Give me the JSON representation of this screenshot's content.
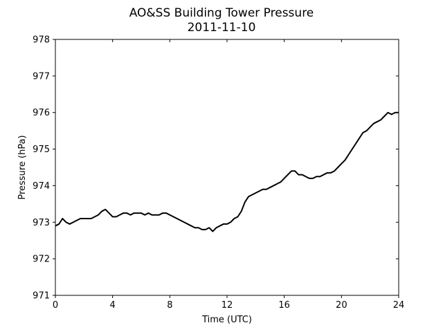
{
  "chart_data": {
    "type": "line",
    "title": "AO&SS Building Tower Pressure",
    "subtitle": "2011-11-10",
    "xlabel": "Time (UTC)",
    "ylabel": "Pressure (hPa)",
    "xlim": [
      0,
      24
    ],
    "ylim": [
      971,
      978
    ],
    "xticks": [
      0,
      4,
      8,
      12,
      16,
      20,
      24
    ],
    "yticks": [
      971,
      972,
      973,
      974,
      975,
      976,
      977,
      978
    ],
    "grid": false,
    "line_color": "#000000",
    "series": [
      {
        "x": [
          0.0,
          0.25,
          0.5,
          0.75,
          1.0,
          1.25,
          1.5,
          1.75,
          2.0,
          2.25,
          2.5,
          2.75,
          3.0,
          3.25,
          3.5,
          3.75,
          4.0,
          4.25,
          4.5,
          4.75,
          5.0,
          5.25,
          5.5,
          5.75,
          6.0,
          6.25,
          6.5,
          6.75,
          7.0,
          7.25,
          7.5,
          7.75,
          8.0,
          8.25,
          8.5,
          8.75,
          9.0,
          9.25,
          9.5,
          9.75,
          10.0,
          10.25,
          10.5,
          10.75,
          11.0,
          11.25,
          11.5,
          11.75,
          12.0,
          12.25,
          12.5,
          12.75,
          13.0,
          13.25,
          13.5,
          13.75,
          14.0,
          14.25,
          14.5,
          14.75,
          15.0,
          15.25,
          15.5,
          15.75,
          16.0,
          16.25,
          16.5,
          16.75,
          17.0,
          17.25,
          17.5,
          17.75,
          18.0,
          18.25,
          18.5,
          18.75,
          19.0,
          19.25,
          19.5,
          19.75,
          20.0,
          20.25,
          20.5,
          20.75,
          21.0,
          21.25,
          21.5,
          21.75,
          22.0,
          22.25,
          22.5,
          22.75,
          23.0,
          23.25,
          23.5,
          23.75,
          24.0
        ],
        "y": [
          972.9,
          972.95,
          973.1,
          973.0,
          972.95,
          973.0,
          973.05,
          973.1,
          973.1,
          973.1,
          973.1,
          973.15,
          973.2,
          973.3,
          973.35,
          973.25,
          973.15,
          973.15,
          973.2,
          973.25,
          973.25,
          973.2,
          973.25,
          973.25,
          973.25,
          973.2,
          973.25,
          973.2,
          973.2,
          973.2,
          973.25,
          973.25,
          973.2,
          973.15,
          973.1,
          973.05,
          973.0,
          972.95,
          972.9,
          972.85,
          972.85,
          972.8,
          972.8,
          972.85,
          972.75,
          972.85,
          972.9,
          972.95,
          972.95,
          973.0,
          973.1,
          973.15,
          973.3,
          973.55,
          973.7,
          973.75,
          973.8,
          973.85,
          973.9,
          973.9,
          973.95,
          974.0,
          974.05,
          974.1,
          974.2,
          974.3,
          974.4,
          974.4,
          974.3,
          974.3,
          974.25,
          974.2,
          974.2,
          974.25,
          974.25,
          974.3,
          974.35,
          974.35,
          974.4,
          974.5,
          974.6,
          974.7,
          974.85,
          975.0,
          975.15,
          975.3,
          975.45,
          975.5,
          975.6,
          975.7,
          975.75,
          975.8,
          975.9,
          976.0,
          975.95,
          976.0,
          976.0
        ]
      }
    ]
  }
}
